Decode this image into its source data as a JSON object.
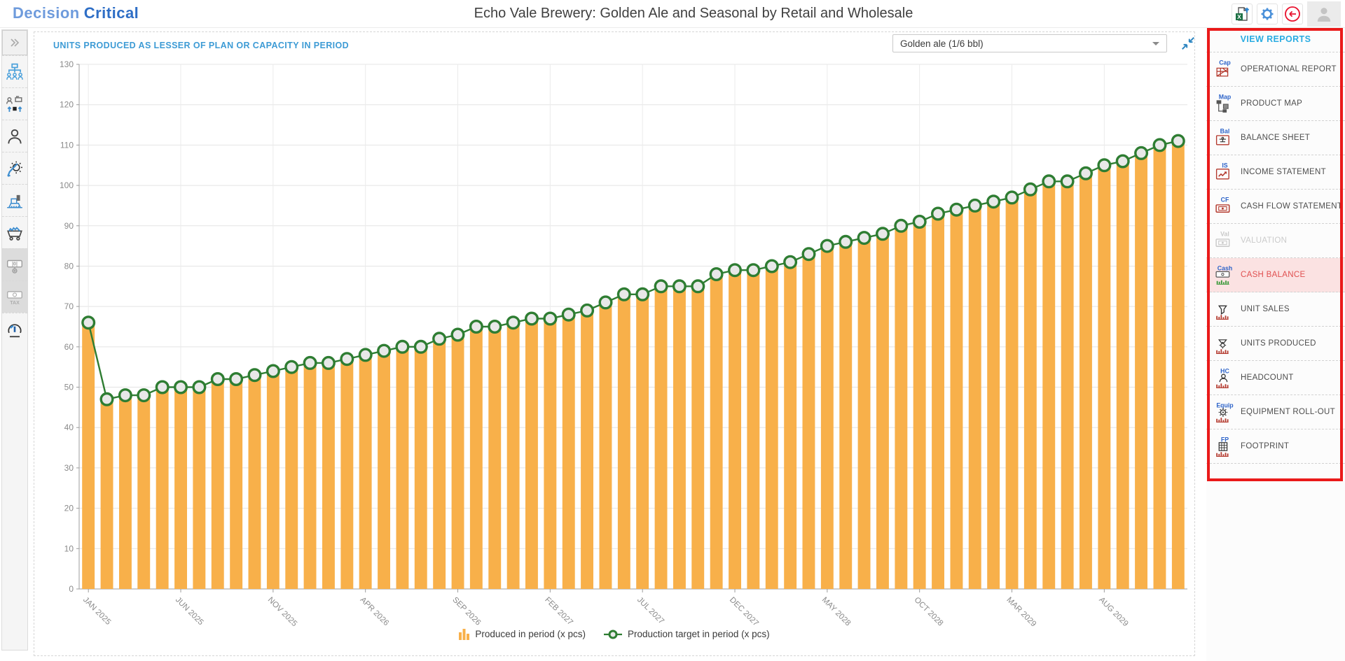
{
  "header": {
    "logo_part1": "Decision",
    "logo_part2": "Critical",
    "title": "Echo Vale Brewery: Golden Ale and Seasonal by Retail and Wholesale"
  },
  "sidebar": {
    "items": [
      {
        "icon": "org-chart-icon"
      },
      {
        "icon": "resources-icon"
      },
      {
        "icon": "person-icon"
      },
      {
        "icon": "gear-pen-icon"
      },
      {
        "icon": "equipment-icon"
      },
      {
        "icon": "brew-cart-icon"
      },
      {
        "icon": "banknote-plus-icon",
        "text": "10",
        "graybg": true
      },
      {
        "icon": "banknote-tax-icon",
        "text": "TAX",
        "graybg": true
      },
      {
        "icon": "gauge-icon"
      }
    ]
  },
  "chart_card": {
    "header_label": "UNITS PRODUCED AS LESSER OF PLAN OR CAPACITY IN PERIOD",
    "dropdown_value": "Golden ale (1/6 bbl)"
  },
  "panel": {
    "title": "VIEW REPORTS",
    "items": [
      {
        "label": "OPERATIONAL REPORT",
        "tag": "Cap",
        "glyph": "red-table",
        "state": "normal"
      },
      {
        "label": "PRODUCT MAP",
        "tag": "Map",
        "glyph": "nodes",
        "state": "normal"
      },
      {
        "label": "BALANCE SHEET",
        "tag": "Bal",
        "glyph": "green-table",
        "state": "normal"
      },
      {
        "label": "INCOME STATEMENT",
        "tag": "IS",
        "glyph": "green-chart",
        "state": "normal"
      },
      {
        "label": "CASH FLOW STATEMENT",
        "tag": "CF",
        "glyph": "green-note",
        "state": "normal"
      },
      {
        "label": "VALUATION",
        "tag": "Val",
        "glyph": "gray-note",
        "state": "disabled"
      },
      {
        "label": "CASH BALANCE",
        "tag": "Cash",
        "glyph": "cash-bars",
        "state": "active"
      },
      {
        "label": "UNIT SALES",
        "tag": "",
        "glyph": "funnel-bars",
        "state": "normal"
      },
      {
        "label": "UNITS PRODUCED",
        "tag": "",
        "glyph": "gearfunnel-bars",
        "state": "normal"
      },
      {
        "label": "HEADCOUNT",
        "tag": "HC",
        "glyph": "person-bars",
        "state": "normal"
      },
      {
        "label": "EQUIPMENT ROLL-OUT",
        "tag": "Equip",
        "glyph": "gear-bars",
        "state": "normal"
      },
      {
        "label": "FOOTPRINT",
        "tag": "FP",
        "glyph": "grid-bars",
        "state": "normal"
      }
    ]
  },
  "chart_data": {
    "type": "bar",
    "n_points": 60,
    "tick_interval": 5,
    "x_tick_labels": [
      "JAN 2025",
      "JUN 2025",
      "NOV 2025",
      "APR 2026",
      "SEP 2026",
      "FEB 2027",
      "JUL 2027",
      "DEC 2027",
      "MAY 2028",
      "OCT 2028",
      "MAR 2029",
      "AUG 2029"
    ],
    "ylim": [
      0,
      130
    ],
    "y_ticks": [
      0,
      10,
      20,
      30,
      40,
      50,
      60,
      70,
      80,
      90,
      100,
      110,
      120,
      130
    ],
    "grid": true,
    "legend_position": "bottom",
    "series": [
      {
        "name": "Produced in period (x pcs)",
        "type": "bar",
        "color": "#F8B04A",
        "values": [
          66,
          47,
          48,
          48,
          50,
          50,
          50,
          52,
          52,
          53,
          54,
          55,
          56,
          56,
          57,
          58,
          59,
          60,
          60,
          62,
          63,
          65,
          65,
          66,
          67,
          67,
          68,
          69,
          71,
          73,
          73,
          75,
          75,
          75,
          78,
          79,
          79,
          80,
          81,
          83,
          85,
          86,
          87,
          88,
          90,
          91,
          93,
          94,
          95,
          96,
          97,
          99,
          101,
          101,
          103,
          105,
          106,
          108,
          110,
          111
        ]
      },
      {
        "name": "Production target in period (x pcs)",
        "type": "line",
        "color": "#2E7D32",
        "marker_fill": "#E8E8E8",
        "values": [
          66,
          47,
          48,
          48,
          50,
          50,
          50,
          52,
          52,
          53,
          54,
          55,
          56,
          56,
          57,
          58,
          59,
          60,
          60,
          62,
          63,
          65,
          65,
          66,
          67,
          67,
          68,
          69,
          71,
          73,
          73,
          75,
          75,
          75,
          78,
          79,
          79,
          80,
          81,
          83,
          85,
          86,
          87,
          88,
          90,
          91,
          93,
          94,
          95,
          96,
          97,
          99,
          101,
          101,
          103,
          105,
          106,
          108,
          110,
          111
        ]
      }
    ]
  },
  "colors": {
    "accent_blue": "#3D9BD5",
    "panel_title_blue": "#2AACE2",
    "highlight_red": "#EA1A1A",
    "active_row_bg": "#FBE2E2",
    "active_row_text": "#E05050",
    "bar_orange": "#F8B04A",
    "line_green": "#2E7D32"
  }
}
